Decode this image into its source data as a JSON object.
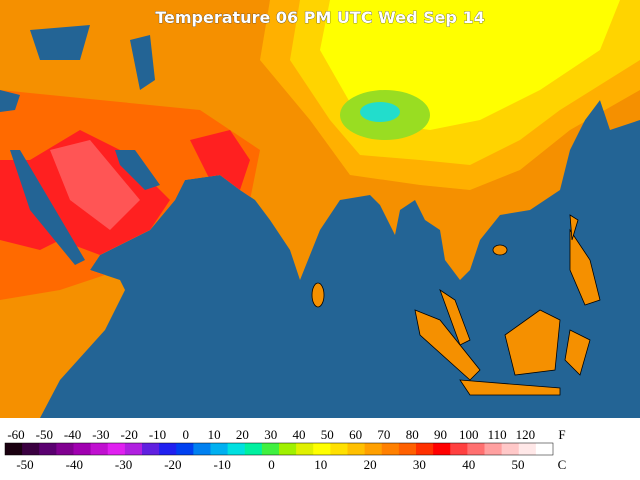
{
  "header": {
    "title": "Temperature 06 PM UTC Wed Sep 14"
  },
  "colorbar": {
    "colors": [
      "#1a0010",
      "#3a0040",
      "#5a0070",
      "#800090",
      "#a000b0",
      "#c010d0",
      "#e020f0",
      "#b020e0",
      "#6020e0",
      "#2020f0",
      "#0040f0",
      "#0080f0",
      "#00b0f0",
      "#00e0e0",
      "#00f0a0",
      "#40f040",
      "#a0f000",
      "#e0f000",
      "#ffff00",
      "#ffe000",
      "#ffc000",
      "#ffa000",
      "#ff8000",
      "#ff6000",
      "#ff3000",
      "#ff0000",
      "#ff4040",
      "#ff7070",
      "#ffa0a0",
      "#ffc8c8",
      "#ffe8e8",
      "#ffffff"
    ],
    "fahrenheit": {
      "labels": [
        -60,
        -50,
        -40,
        -30,
        -20,
        -10,
        0,
        10,
        20,
        30,
        40,
        50,
        60,
        70,
        80,
        90,
        100,
        110,
        120
      ],
      "unit": "F"
    },
    "celsius": {
      "labels": [
        -50,
        -40,
        -30,
        -20,
        -10,
        0,
        10,
        20,
        30,
        40,
        50
      ],
      "unit": "C"
    }
  }
}
